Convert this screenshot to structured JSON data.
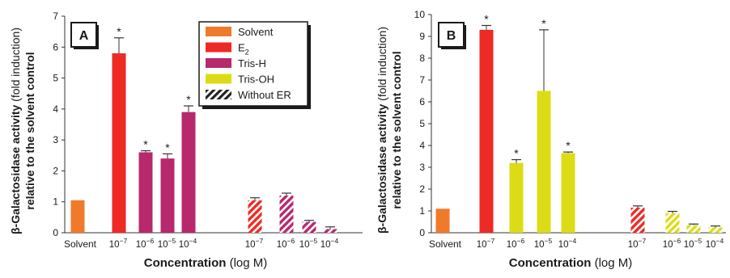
{
  "chart_data": [
    {
      "panel_label": "A",
      "type": "bar",
      "ylabel_bold": "β-Galactosidase activity",
      "ylabel_rest": " (fold induction)",
      "ylabel_line2": "relative to the solvent control",
      "xlabel_bold": "Concentration",
      "xlabel_rest": " (log M)",
      "ylim": [
        0,
        7
      ],
      "yticks": [
        "0",
        "1",
        "2",
        "3",
        "4",
        "5",
        "6",
        "7"
      ],
      "legend": [
        {
          "label": "Solvent",
          "color": "#f07a2a",
          "hatched": false
        },
        {
          "label": "E",
          "sub": "2",
          "color": "#ee2a24",
          "hatched": false
        },
        {
          "label": "Tris-H",
          "color": "#b8286c",
          "hatched": false
        },
        {
          "label": "Tris-OH",
          "color": "#dcdc16",
          "hatched": false
        },
        {
          "label": "Without ER",
          "color": "#1a1a1a",
          "hatched": true
        }
      ],
      "bars": [
        {
          "cat": "Solvent",
          "value": 1.05,
          "error": 0,
          "color": "#f07a2a",
          "hatched": false,
          "star": false
        },
        {
          "cat": "10-7",
          "value": 5.8,
          "error": 0.5,
          "color": "#ee2a24",
          "hatched": false,
          "star": true
        },
        {
          "cat": "10-6",
          "value": 2.6,
          "error": 0.05,
          "color": "#b8286c",
          "hatched": false,
          "star": true
        },
        {
          "cat": "10-5",
          "value": 2.4,
          "error": 0.15,
          "color": "#b8286c",
          "hatched": false,
          "star": true
        },
        {
          "cat": "10-4",
          "value": 3.9,
          "error": 0.2,
          "color": "#b8286c",
          "hatched": false,
          "star": true
        },
        {
          "cat": "10-7",
          "value": 1.05,
          "error": 0.08,
          "color": "#ee2a24",
          "hatched": true,
          "star": false
        },
        {
          "cat": "10-6",
          "value": 1.2,
          "error": 0.08,
          "color": "#b8286c",
          "hatched": true,
          "star": false
        },
        {
          "cat": "10-5",
          "value": 0.35,
          "error": 0.05,
          "color": "#b8286c",
          "hatched": true,
          "star": false
        },
        {
          "cat": "10-4",
          "value": 0.12,
          "error": 0.07,
          "color": "#b8286c",
          "hatched": true,
          "star": false
        }
      ],
      "star_symbol": "*"
    },
    {
      "panel_label": "B",
      "type": "bar",
      "ylabel_bold": "β-Galactosidase activity",
      "ylabel_rest": " (fold induction)",
      "ylabel_line2": "relative to the solvent control",
      "xlabel_bold": "Concentration",
      "xlabel_rest": " (log M)",
      "ylim": [
        0,
        10
      ],
      "yticks": [
        "0",
        "1",
        "2",
        "3",
        "4",
        "5",
        "6",
        "7",
        "8",
        "9",
        "10"
      ],
      "bars": [
        {
          "cat": "Solvent",
          "value": 1.1,
          "error": 0,
          "color": "#f07a2a",
          "hatched": false,
          "star": false
        },
        {
          "cat": "10-7",
          "value": 9.3,
          "error": 0.2,
          "color": "#ee2a24",
          "hatched": false,
          "star": true
        },
        {
          "cat": "10-6",
          "value": 3.2,
          "error": 0.15,
          "color": "#dcdc16",
          "hatched": false,
          "star": true
        },
        {
          "cat": "10-5",
          "value": 6.5,
          "error": 2.8,
          "color": "#dcdc16",
          "hatched": false,
          "star": true
        },
        {
          "cat": "10-4",
          "value": 3.65,
          "error": 0.05,
          "color": "#dcdc16",
          "hatched": false,
          "star": true
        },
        {
          "cat": "10-7",
          "value": 1.15,
          "error": 0.08,
          "color": "#ee2a24",
          "hatched": true,
          "star": false
        },
        {
          "cat": "10-6",
          "value": 0.9,
          "error": 0.08,
          "color": "#dcdc16",
          "hatched": true,
          "star": false
        },
        {
          "cat": "10-5",
          "value": 0.35,
          "error": 0.05,
          "color": "#dcdc16",
          "hatched": true,
          "star": false
        },
        {
          "cat": "10-4",
          "value": 0.25,
          "error": 0.06,
          "color": "#dcdc16",
          "hatched": true,
          "star": false
        }
      ],
      "star_symbol": "*"
    }
  ]
}
